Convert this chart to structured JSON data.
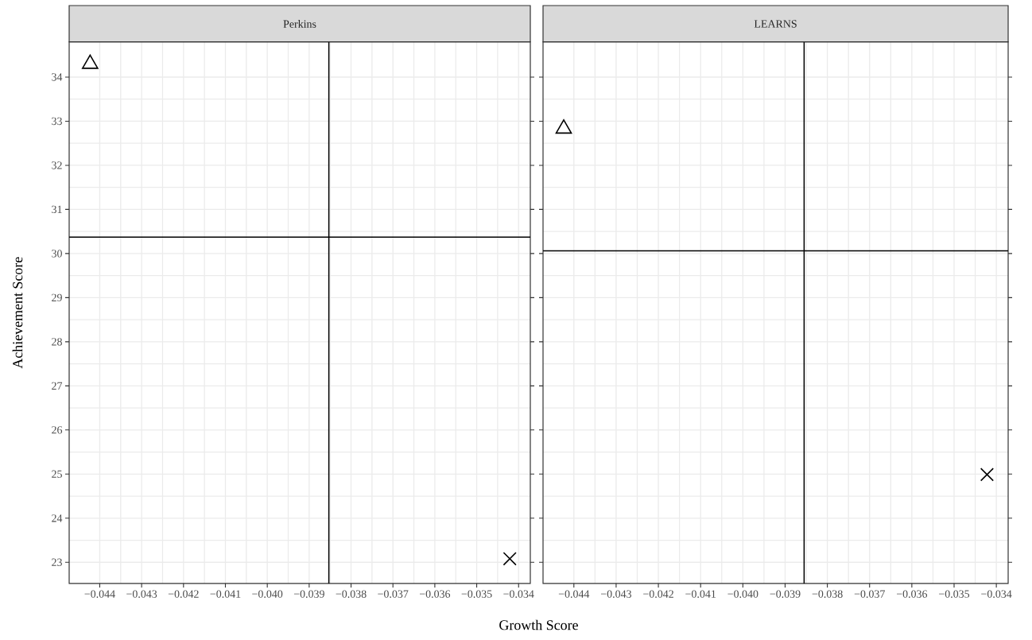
{
  "chart_data": [
    {
      "type": "scatter",
      "title": "Perkins",
      "xlabel": "Growth Score",
      "ylabel": "Achievement Score",
      "series": [
        {
          "color": "#000000",
          "marker": "triangle",
          "x": [
            -0.04423
          ],
          "values": [
            34.3
          ]
        },
        {
          "color": "#000000",
          "marker": "cross",
          "x": [
            -0.03421
          ],
          "values": [
            23.08
          ]
        }
      ],
      "xlim": [
        -0.04473,
        -0.03372
      ],
      "ylim": [
        22.52,
        34.8
      ],
      "xticks": [
        {
          "value": -0.044,
          "label": "−0.044"
        },
        {
          "value": -0.043,
          "label": "−0.043"
        },
        {
          "value": -0.042,
          "label": "−0.042"
        },
        {
          "value": -0.041,
          "label": "−0.041"
        },
        {
          "value": -0.04,
          "label": "−0.040"
        },
        {
          "value": -0.039,
          "label": "−0.039"
        },
        {
          "value": -0.038,
          "label": "−0.038"
        },
        {
          "value": -0.037,
          "label": "−0.037"
        },
        {
          "value": -0.036,
          "label": "−0.036"
        },
        {
          "value": -0.035,
          "label": "−0.035"
        },
        {
          "value": -0.034,
          "label": "−0.034"
        }
      ],
      "yticks": [
        23,
        24,
        25,
        26,
        27,
        28,
        29,
        30,
        31,
        32,
        33,
        34
      ],
      "ref_lines": [
        {
          "axis": "x",
          "value": -0.03853,
          "color": "#000000"
        },
        {
          "axis": "y",
          "value": 30.37,
          "color": "#000000"
        }
      ],
      "grid": true
    },
    {
      "type": "scatter",
      "title": "LEARNS",
      "series": [
        {
          "color": "#000000",
          "marker": "triangle",
          "x": [
            -0.04424
          ],
          "values": [
            32.83
          ]
        },
        {
          "color": "#000000",
          "marker": "cross",
          "x": [
            -0.03422
          ],
          "values": [
            24.99
          ]
        }
      ],
      "xlim": [
        -0.04473,
        -0.03372
      ],
      "ylim": [
        22.52,
        34.8
      ],
      "xticks": [
        {
          "value": -0.044,
          "label": "−0.044"
        },
        {
          "value": -0.043,
          "label": "−0.043"
        },
        {
          "value": -0.042,
          "label": "−0.042"
        },
        {
          "value": -0.041,
          "label": "−0.041"
        },
        {
          "value": -0.04,
          "label": "−0.040"
        },
        {
          "value": -0.039,
          "label": "−0.039"
        },
        {
          "value": -0.038,
          "label": "−0.038"
        },
        {
          "value": -0.037,
          "label": "−0.037"
        },
        {
          "value": -0.036,
          "label": "−0.036"
        },
        {
          "value": -0.035,
          "label": "−0.035"
        },
        {
          "value": -0.034,
          "label": "−0.034"
        }
      ],
      "yticks": [
        23,
        24,
        25,
        26,
        27,
        28,
        29,
        30,
        31,
        32,
        33,
        34
      ],
      "ref_lines": [
        {
          "axis": "x",
          "value": -0.03855,
          "color": "#000000"
        },
        {
          "axis": "y",
          "value": 30.06,
          "color": "#000000"
        }
      ],
      "grid": true,
      "tick_labels": "x"
    }
  ]
}
